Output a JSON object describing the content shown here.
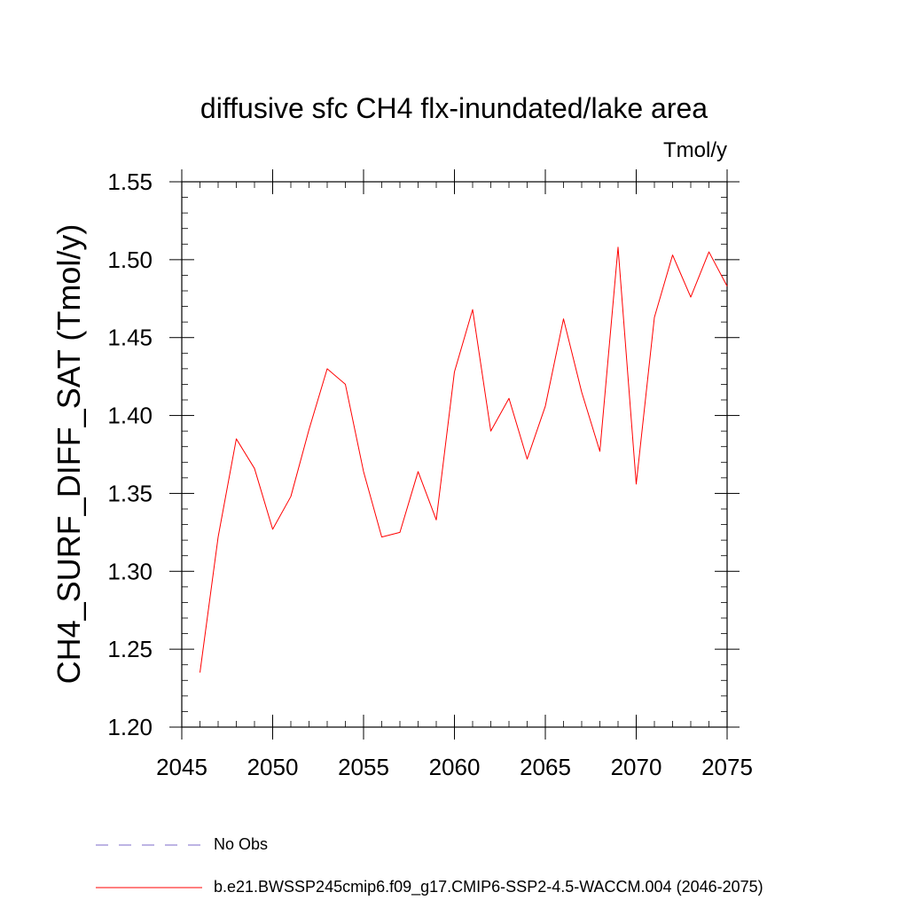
{
  "chart_data": {
    "type": "line",
    "title": "diffusive sfc CH4 flx-inundated/lake area",
    "units_label": "Tmol/y",
    "ylabel": "CH4_SURF_DIFF_SAT  (Tmol/y)",
    "xlabel": "",
    "xlim": [
      2045,
      2075
    ],
    "ylim": [
      1.2,
      1.55
    ],
    "x_ticks": [
      "2045",
      "2050",
      "2055",
      "2060",
      "2065",
      "2070",
      "2075"
    ],
    "y_ticks": [
      "1.20",
      "1.25",
      "1.30",
      "1.35",
      "1.40",
      "1.45",
      "1.50",
      "1.55"
    ],
    "grid": false,
    "legend_position": "bottom",
    "series": [
      {
        "name": "No Obs",
        "color": "#7b68c8",
        "style": "dashed",
        "x": [],
        "values": []
      },
      {
        "name": "b.e21.BWSSP245cmip6.f09_g17.CMIP6-SSP2-4.5-WACCM.004 (2046-2075)",
        "color": "#ff0000",
        "style": "solid",
        "x": [
          2046,
          2047,
          2048,
          2049,
          2050,
          2051,
          2052,
          2053,
          2054,
          2055,
          2056,
          2057,
          2058,
          2059,
          2060,
          2061,
          2062,
          2063,
          2064,
          2065,
          2066,
          2067,
          2068,
          2069,
          2070,
          2071,
          2072,
          2073,
          2074,
          2075
        ],
        "values": [
          1.235,
          1.322,
          1.385,
          1.366,
          1.327,
          1.348,
          1.391,
          1.43,
          1.42,
          1.364,
          1.322,
          1.325,
          1.364,
          1.333,
          1.428,
          1.468,
          1.39,
          1.411,
          1.372,
          1.406,
          1.462,
          1.415,
          1.377,
          1.508,
          1.356,
          1.463,
          1.503,
          1.476,
          1.505,
          1.483
        ]
      }
    ]
  }
}
